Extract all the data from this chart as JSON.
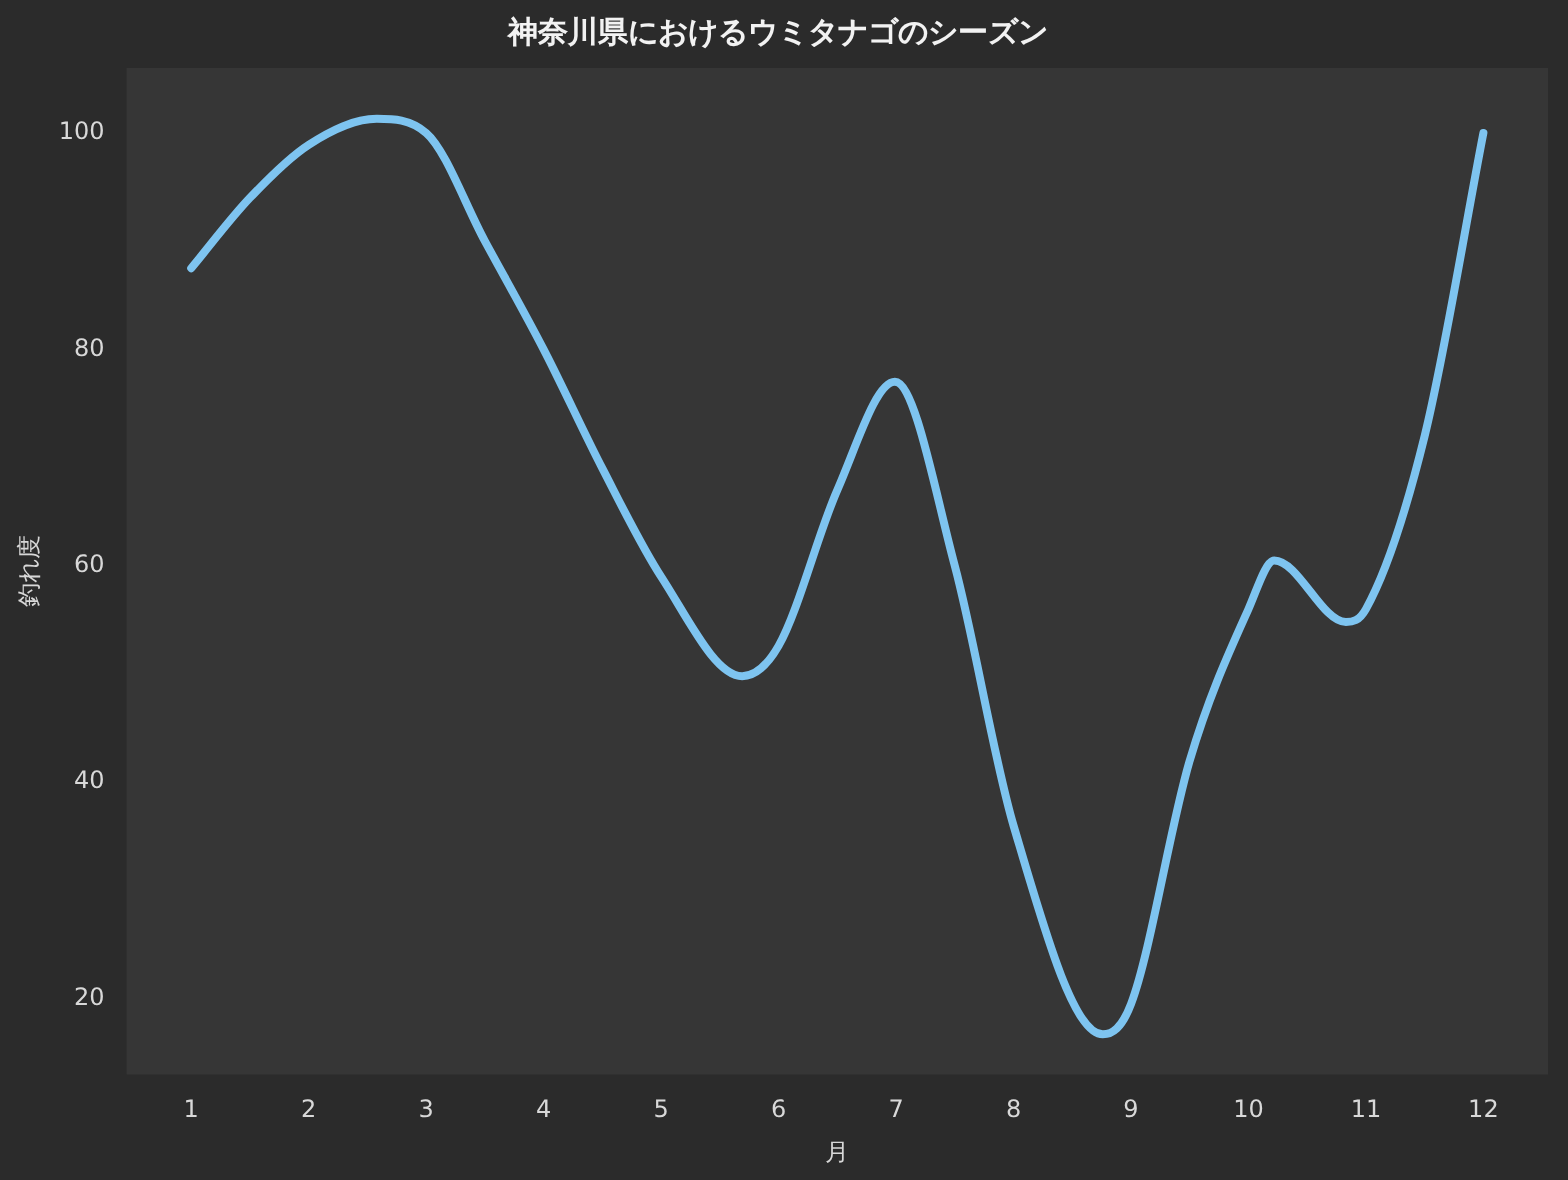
{
  "chart_data": {
    "type": "line",
    "title": "神奈川県におけるウミタナゴのシーズン",
    "xlabel": "月",
    "ylabel": "釣れ度",
    "x": [
      1,
      1.5,
      2,
      2.58,
      3,
      3.5,
      4,
      4.5,
      5,
      5.69,
      6,
      6.5,
      6.99,
      7.5,
      8,
      8.76,
      9,
      9.5,
      10,
      10.22,
      10.83,
      11,
      11.5,
      12
    ],
    "series": [
      {
        "color": "#7ec4f0",
        "values": [
          87.5,
          94,
          98.9,
          101.3,
          100,
          90,
          80,
          69,
          59,
          49.8,
          52.6,
          67,
          77,
          60,
          36,
          16.7,
          19.5,
          42,
          56,
          60.5,
          54.8,
          56,
          72,
          100
        ]
      }
    ],
    "xlim": [
      0.45,
      12.55
    ],
    "ylim": [
      13,
      106
    ],
    "xticks": [
      1,
      2,
      3,
      4,
      5,
      6,
      7,
      8,
      9,
      10,
      11,
      12
    ],
    "yticks": [
      20,
      40,
      60,
      80,
      100
    ],
    "grid": false,
    "legend": false,
    "marker": "none",
    "line_style": "solid"
  }
}
